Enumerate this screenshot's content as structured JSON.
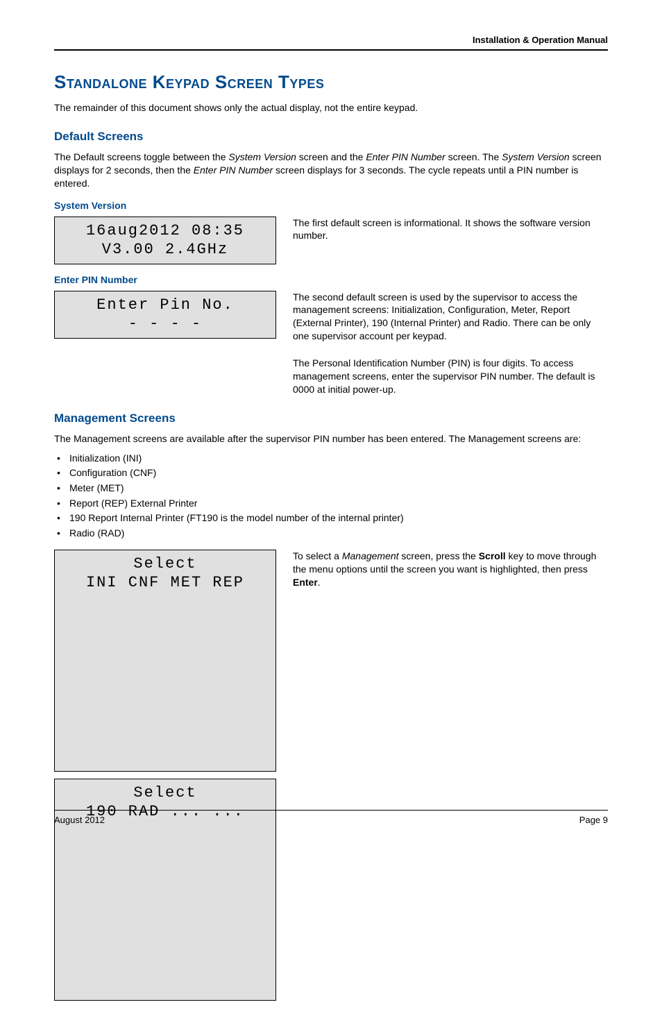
{
  "header": {
    "manual_title": "Installation & Operation Manual"
  },
  "title": "Standalone Keypad Screen Types",
  "intro": "The remainder of this document shows only the actual display, not the entire keypad.",
  "default_screens": {
    "heading": "Default Screens",
    "para_pre": "The Default screens toggle between the ",
    "sv_it": "System Version",
    "para_mid1": " screen and the ",
    "epn_it": "Enter PIN Number",
    "para_mid2": " screen. The ",
    "para_mid3": " screen displays for 2 seconds, then the ",
    "para_mid4": " screen displays for 3 seconds. The cycle repeats until a PIN number is entered."
  },
  "system_version": {
    "heading": "System Version",
    "lcd_line1": "16aug2012  08:35",
    "lcd_line2": "V3.00 2.4GHz",
    "desc": "The first default screen is informational. It shows the software version number."
  },
  "enter_pin": {
    "heading": "Enter PIN Number",
    "lcd_line1": "Enter Pin No.",
    "lcd_line2": "-  -  -  -",
    "desc1": "The second default screen is used by the supervisor to access the management screens: Initialization, Configuration, Meter, Report (External Printer), 190 (Internal Printer) and Radio. There can be only one supervisor account per keypad.",
    "desc2": "The Personal Identification Number (PIN) is four digits. To access management screens, enter the supervisor PIN number. The default is 0000 at initial power-up."
  },
  "management": {
    "heading": "Management Screens",
    "intro": "The Management screens are available after the supervisor PIN number has been entered. The Management screens are:",
    "items": [
      "Initialization (INI)",
      "Configuration (CNF)",
      "Meter (MET)",
      "Report (REP) External Printer",
      "190 Report Internal Printer (FT190 is the model number of the internal printer)",
      "Radio (RAD)"
    ],
    "lcd1_line1": "Select",
    "lcd1_line2": "INI CNF MET REP",
    "lcd2_line1": "Select",
    "lcd2_line2": "190 RAD ... ...",
    "desc_pre": "To select a ",
    "desc_it": "Management",
    "desc_mid1": " screen, press the ",
    "desc_scroll": "Scroll",
    "desc_mid2": " key to move through the menu options until the screen you want is highlighted, then press ",
    "desc_enter": "Enter",
    "desc_end": "."
  },
  "footer": {
    "date": "August 2012",
    "page": "Page 9"
  },
  "colors": {
    "heading_blue": "#004a8d",
    "lcd_bg": "#e0e0e0",
    "text": "#000000"
  }
}
